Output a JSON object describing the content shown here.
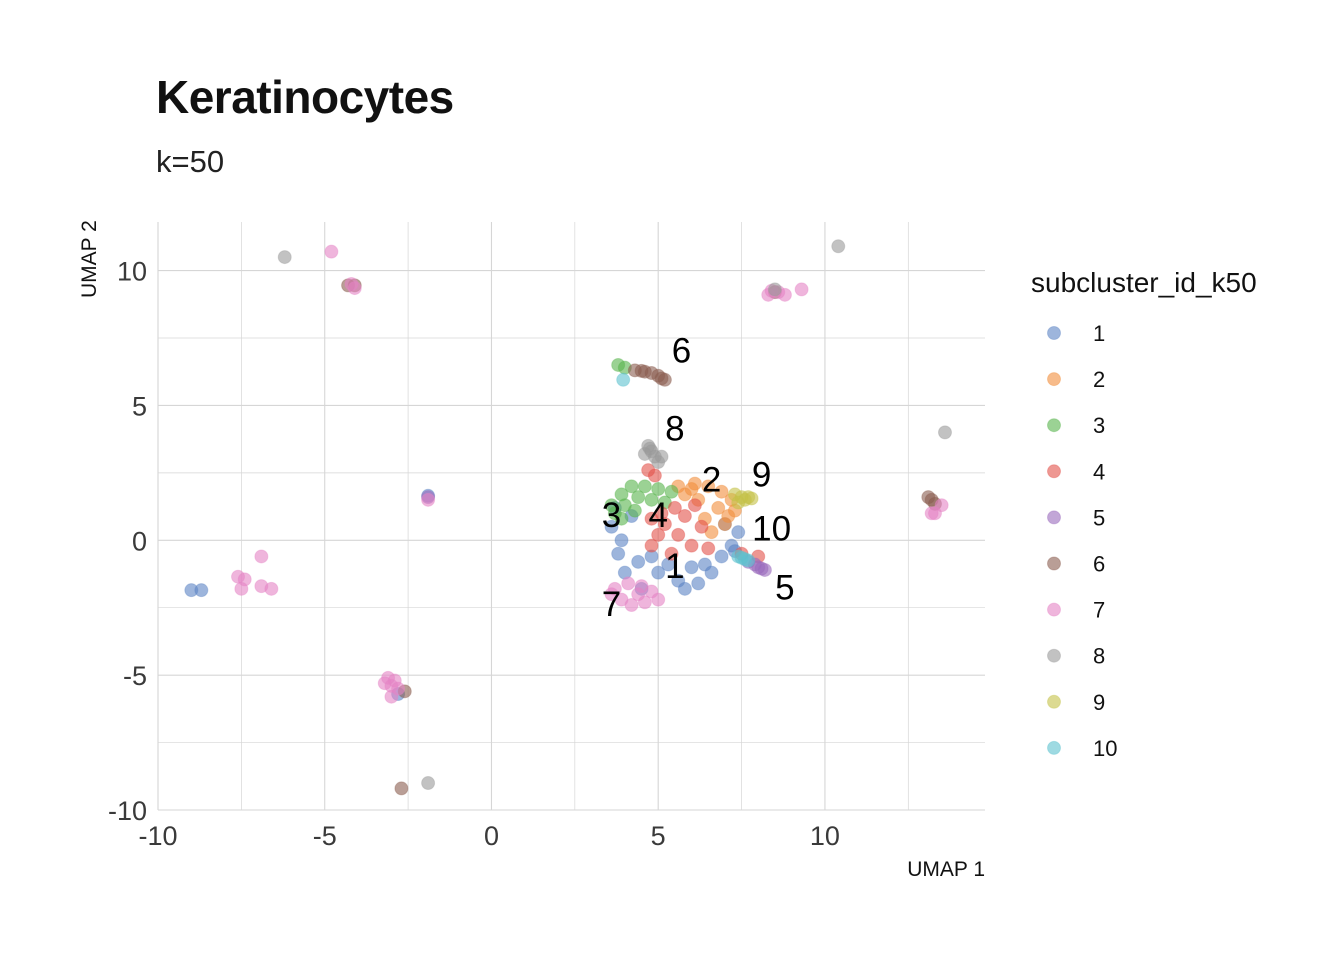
{
  "chart_data": {
    "type": "scatter",
    "title": "Keratinocytes",
    "subtitle": "k=50",
    "xlabel": "UMAP 1",
    "ylabel": "UMAP 2",
    "xlim": [
      -10,
      14.8
    ],
    "ylim": [
      -10,
      11.8
    ],
    "x_ticks": [
      "-10",
      "-5",
      "0",
      "5",
      "10"
    ],
    "x_tick_values": [
      -10,
      -5,
      0,
      5,
      10
    ],
    "y_ticks": [
      "-10",
      "-5",
      "0",
      "5",
      "10"
    ],
    "y_tick_values": [
      -10,
      -5,
      0,
      5,
      10
    ],
    "grid": true,
    "legend_position": "right",
    "legend_title": "subcluster_id_k50",
    "series": [
      {
        "name": "1",
        "color": "#5B83C4",
        "points": [
          [
            3.6,
            0.5
          ],
          [
            3.8,
            -0.5
          ],
          [
            4.0,
            -1.2
          ],
          [
            4.5,
            -1.8
          ],
          [
            5.0,
            -1.2
          ],
          [
            5.6,
            -1.5
          ],
          [
            6.0,
            -1.0
          ],
          [
            6.4,
            -0.9
          ],
          [
            6.6,
            -1.2
          ],
          [
            7.2,
            -0.2
          ],
          [
            7.4,
            0.3
          ],
          [
            7.0,
            0.6
          ],
          [
            4.2,
            0.9
          ],
          [
            3.7,
            1.2
          ],
          [
            5.8,
            -1.8
          ],
          [
            6.2,
            -1.6
          ],
          [
            4.8,
            -0.6
          ],
          [
            6.9,
            -0.6
          ],
          [
            7.3,
            -0.4
          ],
          [
            3.9,
            0.0
          ],
          [
            4.4,
            -0.8
          ],
          [
            5.3,
            -0.9
          ],
          [
            -9.0,
            -1.85
          ],
          [
            -8.7,
            -1.85
          ],
          [
            -2.8,
            -5.7
          ],
          [
            -1.9,
            1.65
          ]
        ]
      },
      {
        "name": "2",
        "color": "#F28E3C",
        "points": [
          [
            5.6,
            2.0
          ],
          [
            6.0,
            1.9
          ],
          [
            6.5,
            2.0
          ],
          [
            6.9,
            1.8
          ],
          [
            7.2,
            1.5
          ],
          [
            7.3,
            1.1
          ],
          [
            7.0,
            0.6
          ],
          [
            6.6,
            0.3
          ],
          [
            6.8,
            1.2
          ],
          [
            6.2,
            1.5
          ],
          [
            5.8,
            1.7
          ],
          [
            6.4,
            0.8
          ],
          [
            7.1,
            0.9
          ],
          [
            6.1,
            2.1
          ]
        ]
      },
      {
        "name": "3",
        "color": "#59B44D",
        "points": [
          [
            3.6,
            1.3
          ],
          [
            3.9,
            1.7
          ],
          [
            4.2,
            2.0
          ],
          [
            4.6,
            2.0
          ],
          [
            5.0,
            1.9
          ],
          [
            5.4,
            1.8
          ],
          [
            3.7,
            1.0
          ],
          [
            4.0,
            1.3
          ],
          [
            4.4,
            1.6
          ],
          [
            4.8,
            1.5
          ],
          [
            5.2,
            1.4
          ],
          [
            3.9,
            0.8
          ],
          [
            4.3,
            1.1
          ],
          [
            3.8,
            6.5
          ],
          [
            4.0,
            6.4
          ]
        ]
      },
      {
        "name": "4",
        "color": "#E2514A",
        "points": [
          [
            4.8,
            0.8
          ],
          [
            5.2,
            0.6
          ],
          [
            5.6,
            0.2
          ],
          [
            6.0,
            -0.2
          ],
          [
            5.4,
            -0.5
          ],
          [
            4.8,
            -0.2
          ],
          [
            5.0,
            0.2
          ],
          [
            5.8,
            0.9
          ],
          [
            6.3,
            0.5
          ],
          [
            6.5,
            -0.3
          ],
          [
            4.7,
            2.6
          ],
          [
            4.9,
            2.4
          ],
          [
            5.1,
            1.0
          ],
          [
            5.5,
            1.2
          ],
          [
            6.1,
            1.3
          ],
          [
            7.5,
            -0.5
          ],
          [
            8.0,
            -0.6
          ]
        ]
      },
      {
        "name": "5",
        "color": "#9A6BBD",
        "points": [
          [
            7.7,
            -0.8
          ],
          [
            7.9,
            -0.9
          ],
          [
            8.0,
            -1.0
          ],
          [
            8.1,
            -1.05
          ],
          [
            8.2,
            -1.1
          ],
          [
            -1.9,
            1.6
          ]
        ]
      },
      {
        "name": "6",
        "color": "#8B5E50",
        "points": [
          [
            4.3,
            6.3
          ],
          [
            4.6,
            6.25
          ],
          [
            4.8,
            6.2
          ],
          [
            5.0,
            6.1
          ],
          [
            5.1,
            6.0
          ],
          [
            5.2,
            5.95
          ],
          [
            4.5,
            6.28
          ],
          [
            -4.3,
            9.45
          ],
          [
            -4.1,
            9.45
          ],
          [
            13.1,
            1.6
          ],
          [
            13.2,
            1.5
          ],
          [
            13.3,
            1.35
          ],
          [
            -2.6,
            -5.6
          ],
          [
            -2.7,
            -9.2
          ],
          [
            8.5,
            9.2
          ]
        ]
      },
      {
        "name": "7",
        "color": "#E583C5",
        "points": [
          [
            3.7,
            -1.8
          ],
          [
            3.9,
            -2.2
          ],
          [
            4.2,
            -2.4
          ],
          [
            4.6,
            -2.3
          ],
          [
            5.0,
            -2.2
          ],
          [
            4.1,
            -1.6
          ],
          [
            4.5,
            -1.7
          ],
          [
            4.8,
            -1.9
          ],
          [
            3.6,
            -2.0
          ],
          [
            4.4,
            -2.0
          ],
          [
            -4.8,
            10.7
          ],
          [
            -4.2,
            9.5
          ],
          [
            -4.1,
            9.35
          ],
          [
            -7.6,
            -1.35
          ],
          [
            -7.4,
            -1.45
          ],
          [
            -7.5,
            -1.8
          ],
          [
            -6.9,
            -0.6
          ],
          [
            -6.9,
            -1.7
          ],
          [
            -6.6,
            -1.8
          ],
          [
            -3.1,
            -5.1
          ],
          [
            -3.2,
            -5.3
          ],
          [
            -3.0,
            -5.4
          ],
          [
            -2.9,
            -5.2
          ],
          [
            -3.0,
            -5.8
          ],
          [
            -2.8,
            -5.5
          ],
          [
            -1.9,
            1.5
          ],
          [
            8.3,
            9.1
          ],
          [
            8.4,
            9.25
          ],
          [
            8.6,
            9.2
          ],
          [
            8.8,
            9.1
          ],
          [
            9.3,
            9.3
          ],
          [
            13.2,
            1.0
          ],
          [
            13.3,
            1.0
          ],
          [
            13.5,
            1.3
          ]
        ]
      },
      {
        "name": "8",
        "color": "#9A9A9A",
        "points": [
          [
            4.7,
            3.5
          ],
          [
            4.8,
            3.3
          ],
          [
            4.9,
            3.1
          ],
          [
            5.0,
            2.9
          ],
          [
            4.6,
            3.2
          ],
          [
            5.1,
            3.1
          ],
          [
            4.75,
            3.4
          ],
          [
            -6.2,
            10.5
          ],
          [
            10.4,
            10.9
          ],
          [
            13.6,
            4.0
          ],
          [
            -1.9,
            -9.0
          ],
          [
            8.5,
            9.3
          ]
        ]
      },
      {
        "name": "9",
        "color": "#C4C247",
        "points": [
          [
            7.3,
            1.7
          ],
          [
            7.5,
            1.6
          ],
          [
            7.6,
            1.5
          ],
          [
            7.7,
            1.6
          ],
          [
            7.4,
            1.4
          ],
          [
            7.8,
            1.55
          ]
        ]
      },
      {
        "name": "10",
        "color": "#5DC2CF",
        "points": [
          [
            7.4,
            -0.6
          ],
          [
            7.6,
            -0.7
          ],
          [
            7.7,
            -0.75
          ],
          [
            7.5,
            -0.65
          ],
          [
            3.95,
            5.95
          ]
        ]
      }
    ],
    "cluster_labels": [
      {
        "text": "6",
        "x": 5.7,
        "y": 6.6
      },
      {
        "text": "8",
        "x": 5.5,
        "y": 3.7
      },
      {
        "text": "2",
        "x": 6.6,
        "y": 1.8
      },
      {
        "text": "9",
        "x": 8.1,
        "y": 2.0
      },
      {
        "text": "3",
        "x": 3.6,
        "y": 0.5
      },
      {
        "text": "4",
        "x": 5.0,
        "y": 0.5
      },
      {
        "text": "10",
        "x": 8.4,
        "y": 0.0
      },
      {
        "text": "1",
        "x": 5.5,
        "y": -1.4
      },
      {
        "text": "5",
        "x": 8.8,
        "y": -2.2
      },
      {
        "text": "7",
        "x": 3.6,
        "y": -2.8
      }
    ]
  }
}
